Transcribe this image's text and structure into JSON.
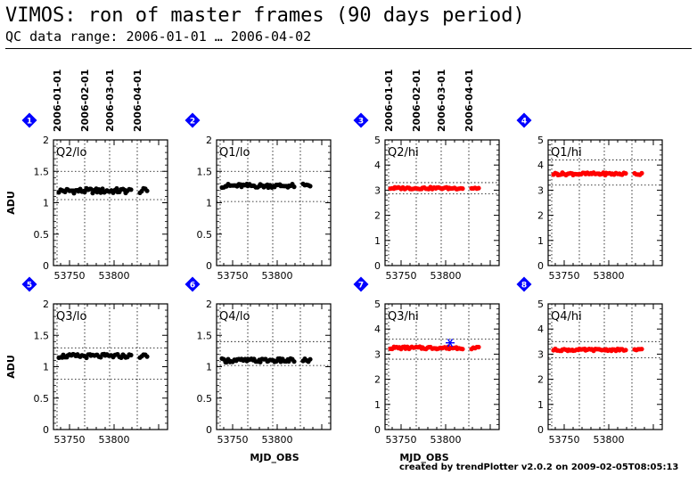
{
  "header": {
    "title": "VIMOS: ron of master frames (90 days period)",
    "subtitle": "QC data range: 2006-01-01 … 2006-04-02",
    "footer": "created by trendPlotter v2.0.2 on 2009-02-05T08:05:13"
  },
  "colors": {
    "lo_points": "#000000",
    "hi_points": "#ff0000",
    "outlier": "#0000ff",
    "badge": "#0000ff"
  },
  "date_labels": [
    "2006-01-01",
    "2006-02-01",
    "2006-03-01",
    "2006-04-01"
  ],
  "date_mjd": [
    53736,
    53767,
    53795,
    53826
  ],
  "x_tick_labels": [
    "53750",
    "53800"
  ],
  "xlabel": "MJD_OBS",
  "ylabel": "ADU",
  "chart_data": [
    {
      "type": "scatter",
      "badge": "1",
      "label": "Q2/lo",
      "xlim": [
        53732,
        53860
      ],
      "ylim": [
        0,
        2
      ],
      "yticks": [
        "0",
        "0.5",
        "1",
        "1.5",
        "2"
      ],
      "ref_lines": [
        1.5,
        1.05
      ],
      "series_color": "black",
      "base": 1.19,
      "amp": 0.04
    },
    {
      "type": "scatter",
      "badge": "2",
      "label": "Q1/lo",
      "xlim": [
        53732,
        53860
      ],
      "ylim": [
        0,
        2
      ],
      "yticks": [
        "0",
        "0.5",
        "1",
        "1.5",
        "2"
      ],
      "ref_lines": [
        1.5,
        1.02
      ],
      "series_color": "black",
      "base": 1.27,
      "amp": 0.03
    },
    {
      "type": "scatter",
      "badge": "3",
      "label": "Q2/hi",
      "xlim": [
        53732,
        53860
      ],
      "ylim": [
        0,
        5
      ],
      "yticks": [
        "0",
        "1",
        "2",
        "3",
        "4",
        "5"
      ],
      "ref_lines": [
        3.3,
        2.85
      ],
      "series_color": "red",
      "base": 3.08,
      "amp": 0.04
    },
    {
      "type": "scatter",
      "badge": "4",
      "label": "Q1/hi",
      "xlim": [
        53732,
        53860
      ],
      "ylim": [
        0,
        5
      ],
      "yticks": [
        "0",
        "1",
        "2",
        "3",
        "4",
        "5"
      ],
      "ref_lines": [
        4.2,
        3.2
      ],
      "series_color": "red",
      "base": 3.65,
      "amp": 0.05
    },
    {
      "type": "scatter",
      "badge": "5",
      "label": "Q3/lo",
      "xlim": [
        53732,
        53860
      ],
      "ylim": [
        0,
        2
      ],
      "yticks": [
        "0",
        "0.5",
        "1",
        "1.5",
        "2"
      ],
      "ref_lines": [
        1.3,
        0.8
      ],
      "series_color": "black",
      "base": 1.17,
      "amp": 0.03
    },
    {
      "type": "scatter",
      "badge": "6",
      "label": "Q4/lo",
      "xlim": [
        53732,
        53860
      ],
      "ylim": [
        0,
        2
      ],
      "yticks": [
        "0",
        "0.5",
        "1",
        "1.5",
        "2"
      ],
      "ref_lines": [
        1.4,
        1.02
      ],
      "series_color": "black",
      "base": 1.1,
      "amp": 0.03
    },
    {
      "type": "scatter",
      "badge": "7",
      "label": "Q3/hi",
      "xlim": [
        53732,
        53860
      ],
      "ylim": [
        0,
        5
      ],
      "yticks": [
        "0",
        "1",
        "2",
        "3",
        "4",
        "5"
      ],
      "ref_lines": [
        3.6,
        2.8
      ],
      "series_color": "red",
      "base": 3.25,
      "amp": 0.05,
      "outlier": {
        "x": 53805,
        "y": 3.45
      }
    },
    {
      "type": "scatter",
      "badge": "8",
      "label": "Q4/hi",
      "xlim": [
        53732,
        53860
      ],
      "ylim": [
        0,
        5
      ],
      "yticks": [
        "0",
        "1",
        "2",
        "3",
        "4",
        "5"
      ],
      "ref_lines": [
        3.5,
        2.85
      ],
      "series_color": "red",
      "base": 3.17,
      "amp": 0.04
    }
  ],
  "observation_mjd": [
    53738,
    53740,
    53742,
    53743,
    53745,
    53747,
    53748,
    53750,
    53752,
    53754,
    53755,
    53757,
    53759,
    53760,
    53762,
    53764,
    53766,
    53767,
    53769,
    53771,
    53773,
    53774,
    53776,
    53778,
    53780,
    53781,
    53783,
    53785,
    53787,
    53789,
    53790,
    53792,
    53794,
    53796,
    53797,
    53799,
    53801,
    53803,
    53804,
    53806,
    53808,
    53810,
    53812,
    53813,
    53815,
    53817,
    53819,
    53829,
    53831,
    53833,
    53835,
    53837
  ]
}
